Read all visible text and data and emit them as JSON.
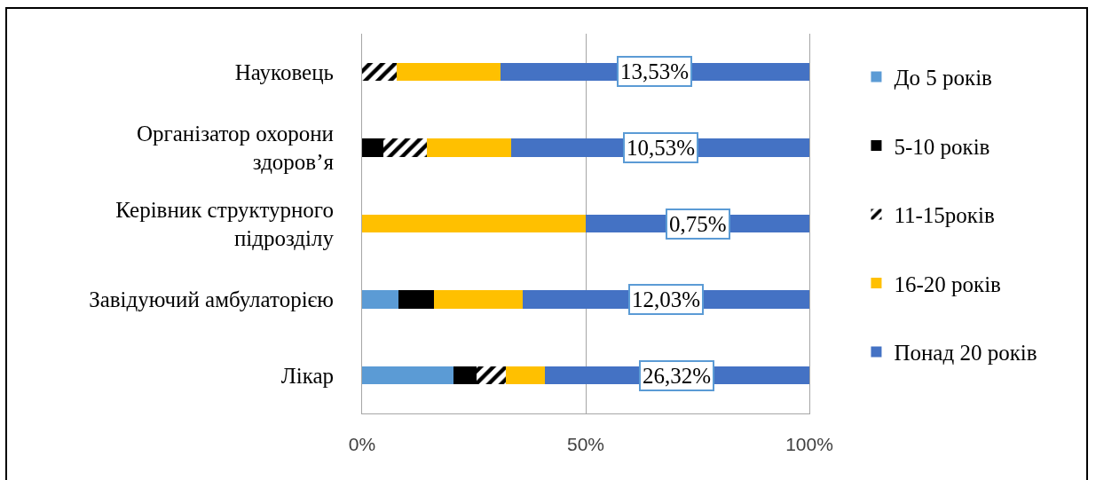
{
  "chart_data": {
    "type": "bar",
    "orientation": "horizontal",
    "stacked": true,
    "categories": [
      "Науковець",
      "Організатор охорони\nздоров’я",
      "Керівник структурного\nпідрозділу",
      "Завідуючий амбулаторією",
      "Лікар"
    ],
    "series": [
      {
        "name": "До 5 років",
        "color": "#5b9bd5",
        "values": [
          0,
          0,
          0,
          8.1,
          20.5
        ]
      },
      {
        "name": "5-10 років",
        "color": "#000000",
        "values": [
          0,
          4.8,
          0,
          7.9,
          5.0
        ]
      },
      {
        "name": "11-15років",
        "color": "#000000",
        "values": [
          7.8,
          9.6,
          0,
          0,
          6.7
        ]
      },
      {
        "name": "16-20 років",
        "color": "#ffc000",
        "values": [
          23.1,
          19.0,
          50,
          20.0,
          8.6
        ]
      },
      {
        "name": "Понад 20 років",
        "color": "#4472c4",
        "values": [
          69.1,
          66.6,
          50,
          64.0,
          59.2
        ]
      }
    ],
    "xlim": [
      0,
      100
    ],
    "xticks": [
      {
        "value": 0,
        "label": "0%"
      },
      {
        "value": 50,
        "label": "50%"
      },
      {
        "value": 100,
        "label": "100%"
      }
    ],
    "grid": "x",
    "legend": "right",
    "annotations": [
      "13,53%",
      "10,53%",
      "0,75%",
      "12,03%",
      "26,32%"
    ]
  }
}
